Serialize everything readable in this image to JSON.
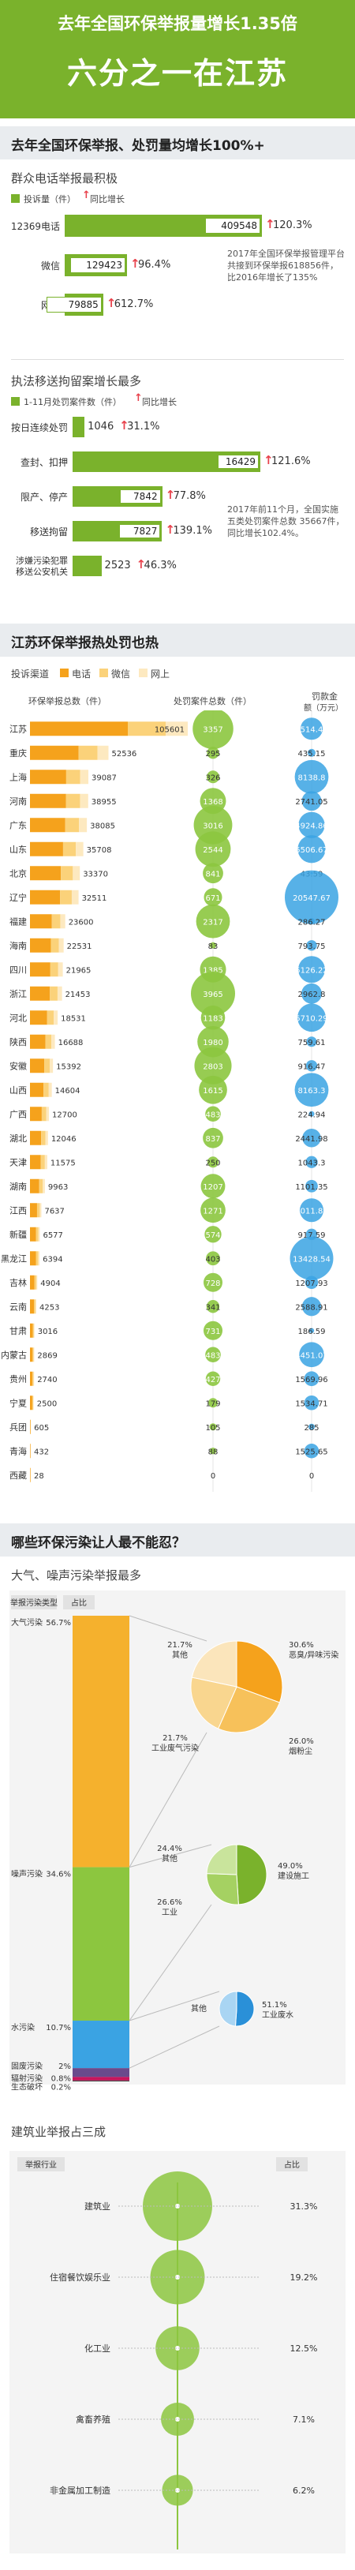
{
  "header": {
    "title_line1": "去年全国环保举报量增长1.35倍",
    "title_line2": "六分之一在江苏"
  },
  "section1": {
    "band_title": "去年全国环保举报、处罚量均增长100%+",
    "subtitle": "群众电话举报最积极",
    "legend_volume": "投诉量（件）",
    "legend_growth": "同比增长",
    "items": [
      {
        "label": "12369电话",
        "value": 409548,
        "growth": "120.3%"
      },
      {
        "label": "微信",
        "value": 129423,
        "growth": "96.4%"
      },
      {
        "label": "网络",
        "value": 79885,
        "growth": "612.7%"
      }
    ],
    "note": "2017年全国环保举报管理平台共接到环保举报618856件，比2016年增长了135%"
  },
  "section2": {
    "subtitle": "执法移送拘留案增长最多",
    "legend_cases": "1-11月处罚案件数（件）",
    "legend_growth": "同比增长",
    "items": [
      {
        "label": "按日连续处罚",
        "value": 1046,
        "growth": "31.1%"
      },
      {
        "label": "查封、扣押",
        "value": 16429,
        "growth": "121.6%"
      },
      {
        "label": "限产、停产",
        "value": 7842,
        "growth": "77.8%"
      },
      {
        "label": "移送拘留",
        "value": 7827,
        "growth": "139.1%"
      },
      {
        "label": "涉嫌污染犯罪移送公安机关",
        "label_line1": "涉嫌污染犯罪",
        "label_line2": "移送公安机关",
        "value": 2523,
        "growth": "46.3%"
      }
    ],
    "note": "2017年前11个月，全国实施五类处罚案件总数 35667件，同比增长102.4%。"
  },
  "section3": {
    "band_title": "江苏环保举报热处罚也热",
    "legend_channel": "投诉渠道",
    "legend_phone": "电话",
    "legend_wechat": "微信",
    "legend_web": "网上",
    "col_reports": "环保举报总数（件）",
    "col_cases": "处罚案件总数（件）",
    "col_fines_line1": "罚款金",
    "col_fines_line2": "额（万元）",
    "colors": {
      "phone": "#f5a21c",
      "wechat": "#fbd27a",
      "web": "#fde9c0",
      "green": "#8cc63f",
      "blue": "#3aa3e3"
    }
  },
  "chart_data": [
    {
      "type": "bar",
      "title": "江苏环保举报热处罚也热",
      "categories": [
        "江苏",
        "重庆",
        "上海",
        "河南",
        "广东",
        "山东",
        "北京",
        "辽宁",
        "福建",
        "海南",
        "四川",
        "浙江",
        "河北",
        "陕西",
        "安徽",
        "山西",
        "广西",
        "湖北",
        "天津",
        "湖南",
        "江西",
        "新疆",
        "黑龙江",
        "吉林",
        "云南",
        "甘肃",
        "内蒙古",
        "贵州",
        "宁夏",
        "兵团",
        "青海",
        "西藏"
      ],
      "series": [
        {
          "name": "环保举报总数（件）",
          "values": [
            105601,
            52536,
            39087,
            38955,
            38085,
            35708,
            33370,
            32511,
            23600,
            22531,
            21965,
            21453,
            18531,
            16688,
            15392,
            14604,
            12700,
            12046,
            11575,
            9963,
            7637,
            6577,
            6394,
            4904,
            4253,
            3016,
            2869,
            2740,
            2500,
            605,
            432,
            28
          ]
        },
        {
          "name": "处罚案件总数（件）",
          "values": [
            3357,
            295,
            326,
            1368,
            3016,
            2544,
            841,
            671,
            2317,
            83,
            1385,
            3965,
            1183,
            1980,
            2803,
            1615,
            483,
            837,
            250,
            1207,
            1271,
            574,
            403,
            728,
            341,
            731,
            483,
            427,
            179,
            105,
            88,
            0
          ]
        },
        {
          "name": "罚款金额（万元）",
          "values": [
            3514.47,
            435.15,
            8138.8,
            2741.05,
            4924.86,
            5506.67,
            43.59,
            20547.67,
            286.27,
            793.75,
            5126.22,
            2962.8,
            5710.29,
            759.61,
            916.47,
            8163.3,
            224.94,
            2441.98,
            1043.3,
            1101.35,
            4011.83,
            917.59,
            13428.54,
            1207.93,
            2588.91,
            186.59,
            4451.07,
            1569.96,
            1534.71,
            285,
            1525.65,
            0
          ]
        }
      ]
    },
    {
      "type": "bar",
      "title": "群众电话举报最积极",
      "categories": [
        "12369电话",
        "微信",
        "网络"
      ],
      "values": [
        409548,
        129423,
        79885
      ]
    },
    {
      "type": "bar",
      "title": "执法移送拘留案增长最多",
      "categories": [
        "按日连续处罚",
        "查封、扣押",
        "限产、停产",
        "移送拘留",
        "涉嫌污染犯罪移送公安机关"
      ],
      "values": [
        1046,
        16429,
        7842,
        7827,
        2523
      ]
    },
    {
      "type": "pie",
      "title": "大气、噪声污染举报最多",
      "categories": [
        "大气污染",
        "噪声污染",
        "水污染",
        "固废污染",
        "辐射污染",
        "生态破坏"
      ],
      "values": [
        56.7,
        34.6,
        10.7,
        2,
        0.8,
        0.2
      ],
      "sub_air": {
        "categories": [
          "恶臭/异味污染",
          "烟粉尘",
          "工业废气污染",
          "其他"
        ],
        "values": [
          30.6,
          26.0,
          21.7,
          21.7
        ]
      },
      "sub_noise": {
        "categories": [
          "建设施工",
          "工业",
          "其他"
        ],
        "values": [
          49.0,
          26.6,
          24.4
        ]
      },
      "sub_water": {
        "categories": [
          "工业废水",
          "其他"
        ],
        "values": [
          51.1,
          48.9
        ]
      }
    },
    {
      "type": "bar",
      "title": "建筑业举报占三成",
      "categories": [
        "建筑业",
        "住宿餐饮娱乐业",
        "化工业",
        "禽畜养殖",
        "非金属加工制造"
      ],
      "values": [
        31.3,
        19.2,
        12.5,
        7.1,
        6.2
      ]
    }
  ],
  "section4": {
    "band_title": "哪些环保污染让人最不能忍？",
    "subtitle": "大气、噪声污染举报最多",
    "col_type": "举报污染类型",
    "col_share": "占比",
    "main": [
      {
        "label": "大气污染",
        "pct": "56.7%"
      },
      {
        "label": "噪声污染",
        "pct": "34.6%"
      },
      {
        "label": "水污染",
        "pct": "10.7%"
      },
      {
        "label": "固废污染",
        "pct": "2%"
      },
      {
        "label": "辐射污染",
        "pct": "0.8%"
      },
      {
        "label": "生态破坏",
        "pct": "0.2%"
      }
    ],
    "air": [
      {
        "label": "恶臭/异味污染",
        "pct": "30.6%"
      },
      {
        "label": "烟粉尘",
        "pct": "26.0%"
      },
      {
        "label": "工业废气污染",
        "pct": "21.7%"
      },
      {
        "label": "其他",
        "pct": "21.7%"
      }
    ],
    "noise": [
      {
        "label": "建设施工",
        "pct": "49.0%"
      },
      {
        "label": "工业",
        "pct": "26.6%"
      },
      {
        "label": "其他",
        "pct": "24.4%"
      }
    ],
    "water": [
      {
        "label": "工业废水",
        "pct": "51.1%"
      },
      {
        "label": "其他",
        "pct": ""
      }
    ],
    "colors": {
      "air": "#f5b12d",
      "noise": "#8cc63f",
      "water": "#3aa3e3",
      "solid": "#6a4a8c",
      "rad": "#c8155c",
      "eco": "#444444"
    }
  },
  "section5": {
    "subtitle": "建筑业举报占三成",
    "col_industry": "举报行业",
    "col_share": "占比",
    "items": [
      {
        "label": "建筑业",
        "pct": "31.3%"
      },
      {
        "label": "住宿餐饮娱乐业",
        "pct": "19.2%"
      },
      {
        "label": "化工业",
        "pct": "12.5%"
      },
      {
        "label": "禽畜养殖",
        "pct": "7.1%"
      },
      {
        "label": "非金属加工制造",
        "pct": "6.2%"
      }
    ]
  }
}
